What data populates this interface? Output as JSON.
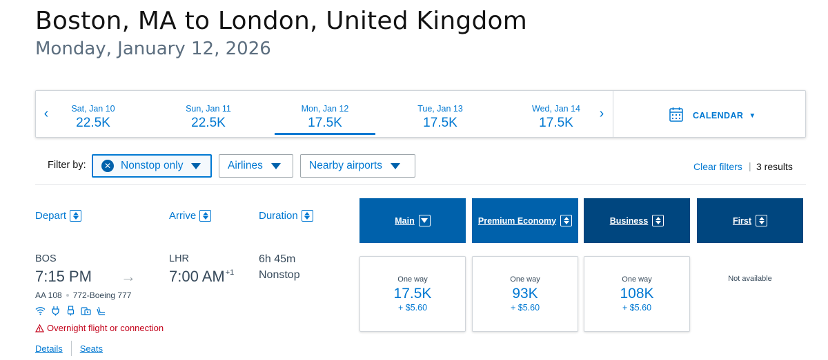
{
  "header": {
    "route": "Boston, MA to London, United Kingdom",
    "date": "Monday, January 12, 2026"
  },
  "date_strip": {
    "prev_icon": "chevron-left-icon",
    "next_icon": "chevron-right-icon",
    "days": [
      {
        "label": "Sat, Jan 10",
        "price": "22.5K"
      },
      {
        "label": "Sun, Jan 11",
        "price": "22.5K"
      },
      {
        "label": "Mon, Jan 12",
        "price": "17.5K",
        "selected": true
      },
      {
        "label": "Tue, Jan 13",
        "price": "17.5K"
      },
      {
        "label": "Wed, Jan 14",
        "price": "17.5K"
      }
    ],
    "calendar_label": "CALENDAR"
  },
  "filters": {
    "label": "Filter by:",
    "nonstop": "Nonstop only",
    "airlines": "Airlines",
    "nearby": "Nearby airports",
    "clear": "Clear filters",
    "results": "3 results"
  },
  "columns": {
    "depart": "Depart",
    "arrive": "Arrive",
    "duration": "Duration",
    "cabins": [
      {
        "label": "Main",
        "color": "#0061ab"
      },
      {
        "label": "Premium Economy",
        "color": "#0061ab"
      },
      {
        "label": "Business",
        "color": "#00467f"
      },
      {
        "label": "First",
        "color": "#00467f"
      }
    ]
  },
  "flight": {
    "depart_airport": "BOS",
    "depart_time": "7:15 PM",
    "arrive_airport": "LHR",
    "arrive_time": "7:00 AM",
    "arrive_day_offset": "+1",
    "duration": "6h 45m",
    "stops": "Nonstop",
    "flight_number": "AA 108",
    "aircraft": "772-Boeing 777",
    "amenities": [
      "wifi-icon",
      "power-outlet-icon",
      "usb-icon",
      "entertainment-icon",
      "lie-flat-seat-icon"
    ],
    "warning": "Overnight flight or connection",
    "details_link": "Details",
    "seats_link": "Seats",
    "fares": [
      {
        "label": "One way",
        "price": "17.5K",
        "tax": "+ $5.60"
      },
      {
        "label": "One way",
        "price": "93K",
        "tax": "+ $5.60"
      },
      {
        "label": "One way",
        "price": "108K",
        "tax": "+ $5.60"
      }
    ],
    "first_status": "Not available"
  },
  "colors": {
    "accent": "#0078d2",
    "cabin_light": "#0061ab",
    "cabin_dark": "#00467f",
    "warning": "#c30019"
  }
}
